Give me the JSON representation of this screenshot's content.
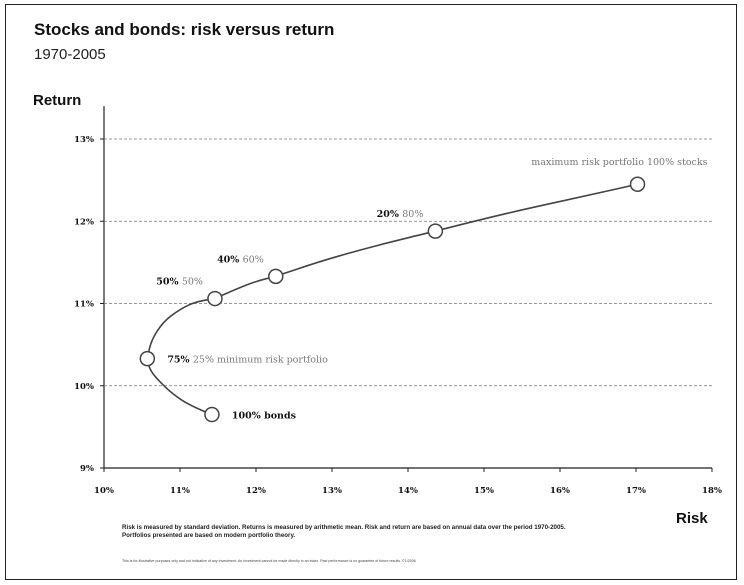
{
  "chart_data": {
    "type": "line",
    "title": "Stocks and bonds: risk versus return",
    "subtitle": "1970-2005",
    "xlabel": "Risk",
    "ylabel": "Return",
    "xlim": [
      10,
      18
    ],
    "ylim": [
      9,
      13.4
    ],
    "x_ticks": [
      "10%",
      "11%",
      "12%",
      "13%",
      "14%",
      "15%",
      "16%",
      "17%",
      "18%"
    ],
    "y_ticks": [
      "9%",
      "10%",
      "11%",
      "12%",
      "13%"
    ],
    "grid": "horizontal-dashed",
    "curve": [
      [
        11.42,
        9.65
      ],
      [
        11.15,
        9.75
      ],
      [
        10.9,
        9.9
      ],
      [
        10.7,
        10.08
      ],
      [
        10.6,
        10.2
      ],
      [
        10.57,
        10.33
      ],
      [
        10.62,
        10.55
      ],
      [
        10.78,
        10.78
      ],
      [
        11.0,
        10.93
      ],
      [
        11.2,
        11.02
      ],
      [
        11.46,
        11.06
      ],
      [
        11.75,
        11.18
      ],
      [
        12.0,
        11.27
      ],
      [
        12.26,
        11.33
      ],
      [
        12.8,
        11.5
      ],
      [
        13.4,
        11.66
      ],
      [
        14.0,
        11.8
      ],
      [
        14.36,
        11.88
      ],
      [
        15.0,
        12.03
      ],
      [
        15.6,
        12.16
      ],
      [
        16.3,
        12.3
      ],
      [
        17.02,
        12.45
      ]
    ],
    "points": [
      {
        "x": 11.42,
        "y": 9.65,
        "bold": "100% bonds",
        "gray": "",
        "label_side": "right"
      },
      {
        "x": 10.57,
        "y": 10.33,
        "bold": "75%",
        "gray": "25% minimum risk portfolio",
        "label_side": "right"
      },
      {
        "x": 11.46,
        "y": 11.06,
        "bold": "50%",
        "gray": "50%",
        "label_side": "left"
      },
      {
        "x": 12.26,
        "y": 11.33,
        "bold": "40%",
        "gray": "60%",
        "label_side": "left"
      },
      {
        "x": 14.36,
        "y": 11.88,
        "bold": "20%",
        "gray": "80%",
        "label_side": "left"
      },
      {
        "x": 17.02,
        "y": 12.45,
        "bold": "",
        "gray": "maximum risk portfolio 100% stocks",
        "label_side": "above"
      }
    ],
    "footnote": "Risk is measured by standard deviation. Returns is measured by arithmetic mean. Risk and return are based on annual data over the period 1970-2005. Portfolios presented are based on modern portfolio theory.",
    "fineprint": "This is for illustrative purposes only and not indicative of any investment. An investment cannot be made directly in an index. Past performance is no guarantee of future results. ©1/2006"
  }
}
